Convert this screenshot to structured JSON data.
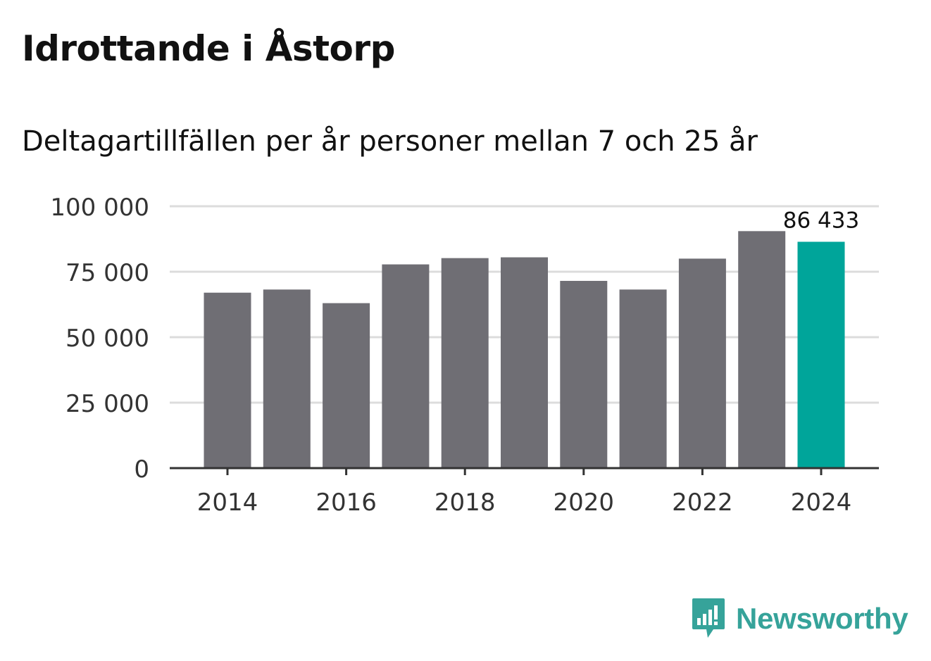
{
  "title": "Idrottande i Åstorp",
  "subtitle": "Deltagartillfällen per år personer mellan 7 och 25 år",
  "brand": "Newsworthy",
  "colors": {
    "bar": "#6f6e74",
    "highlight": "#00a59a",
    "grid": "#dcdcdc",
    "axis": "#333333",
    "brand": "#36a39a"
  },
  "chart_data": {
    "type": "bar",
    "title": "Idrottande i Åstorp",
    "subtitle": "Deltagartillfällen per år personer mellan 7 och 25 år",
    "xlabel": "",
    "ylabel": "",
    "categories": [
      "2014",
      "2015",
      "2016",
      "2017",
      "2018",
      "2019",
      "2020",
      "2021",
      "2022",
      "2023",
      "2024"
    ],
    "values": [
      67000,
      68200,
      63000,
      77800,
      80200,
      80500,
      71500,
      68200,
      80000,
      90500,
      86433
    ],
    "ylim": [
      0,
      100000
    ],
    "yticks": [
      0,
      25000,
      50000,
      75000,
      100000
    ],
    "ytick_labels": [
      "0",
      "25 000",
      "50 000",
      "75 000",
      "100 000"
    ],
    "xtick_labels": [
      "2014",
      "2016",
      "2018",
      "2020",
      "2022",
      "2024"
    ],
    "xtick_years": [
      "2014",
      "2016",
      "2018",
      "2020",
      "2022",
      "2024"
    ],
    "highlight_index": 10,
    "annotation": "86 433",
    "grid": true
  }
}
